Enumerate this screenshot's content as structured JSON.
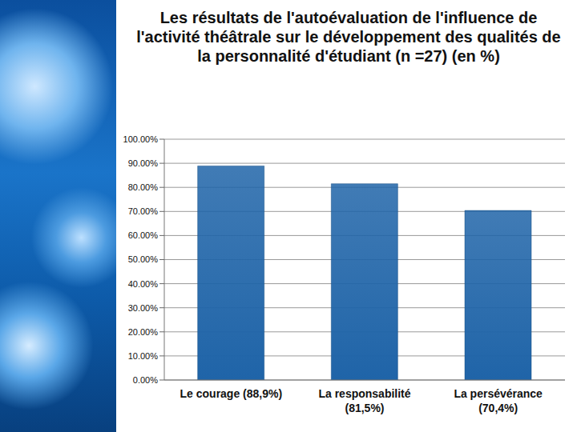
{
  "chart_data": {
    "type": "bar",
    "title": "Les résultats de l'autoévaluation de l'influence de l'activité théâtrale sur le développement des qualités de la personnalité d'étudiant (n =27) (en %)",
    "categories": [
      "Le courage (88,9%)",
      "La responsabilité (81,5%)",
      "La persévérance (70,4%)"
    ],
    "values": [
      88.9,
      81.5,
      70.4
    ],
    "color": "#1f64a8",
    "ylim": [
      0,
      100
    ],
    "yticks": [
      {
        "value": 0,
        "label": "0.00%"
      },
      {
        "value": 10,
        "label": "10.00%"
      },
      {
        "value": 20,
        "label": "20.00%"
      },
      {
        "value": 30,
        "label": "30.00%"
      },
      {
        "value": 40,
        "label": "40.00%"
      },
      {
        "value": 50,
        "label": "50.00%"
      },
      {
        "value": 60,
        "label": "60.00%"
      },
      {
        "value": 70,
        "label": "70.00%"
      },
      {
        "value": 80,
        "label": "80.00%"
      },
      {
        "value": 90,
        "label": "90.00%"
      },
      {
        "value": 100,
        "label": "100.00%"
      }
    ],
    "grid": true
  }
}
